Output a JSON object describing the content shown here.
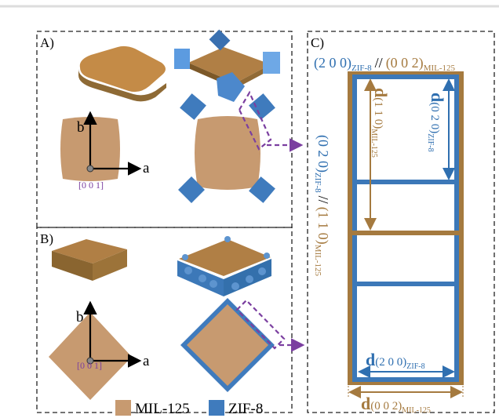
{
  "panel_a": {
    "label": "A)",
    "axis_b": "b",
    "axis_a": "a",
    "zone_axis": "[0 0 1]"
  },
  "panel_b": {
    "label": "B)",
    "axis_b": "b",
    "axis_a": "a",
    "zone_axis": "[0 0 1]"
  },
  "legend": {
    "mil": "MIL-125",
    "zif": "ZIF-8"
  },
  "panel_c": {
    "label": "C)",
    "horizontal_relation": {
      "zif_plane": "(2 0 0)",
      "zif_sub": "ZIF-8",
      "separator": "//",
      "mil_plane": "(0 0 2)",
      "mil_sub": "MIL-125"
    },
    "vertical_relation": {
      "zif_plane": "(0 2 0)",
      "zif_sub": "ZIF-8",
      "separator": "//",
      "mil_plane": "(1 1 0)",
      "mil_sub": "MIL-125"
    },
    "d_mil_110": {
      "d": "d",
      "plane": "(1 1 0)",
      "sub": "MIL-125"
    },
    "d_zif_020": {
      "d": "d",
      "plane": "(0 2 0)",
      "sub": "ZIF-8"
    },
    "d_zif_200": {
      "d": "d",
      "plane": "(2 0 0)",
      "sub": "ZIF-8"
    },
    "d_mil_002": {
      "d": "d",
      "plane": "(0 0 2)",
      "sub": "MIL-125"
    }
  }
}
